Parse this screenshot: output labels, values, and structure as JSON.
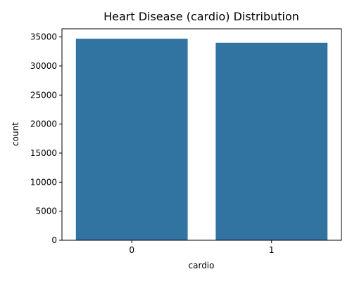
{
  "chart_data": {
    "type": "bar",
    "title": "Heart Disease (cardio) Distribution",
    "xlabel": "cardio",
    "ylabel": "count",
    "categories": [
      "0",
      "1"
    ],
    "values": [
      34700,
      34000
    ],
    "ylim": [
      0,
      36400
    ],
    "yticks": [
      0,
      5000,
      10000,
      15000,
      20000,
      25000,
      30000,
      35000
    ],
    "grid": false,
    "bar_color": "#3274a1"
  }
}
